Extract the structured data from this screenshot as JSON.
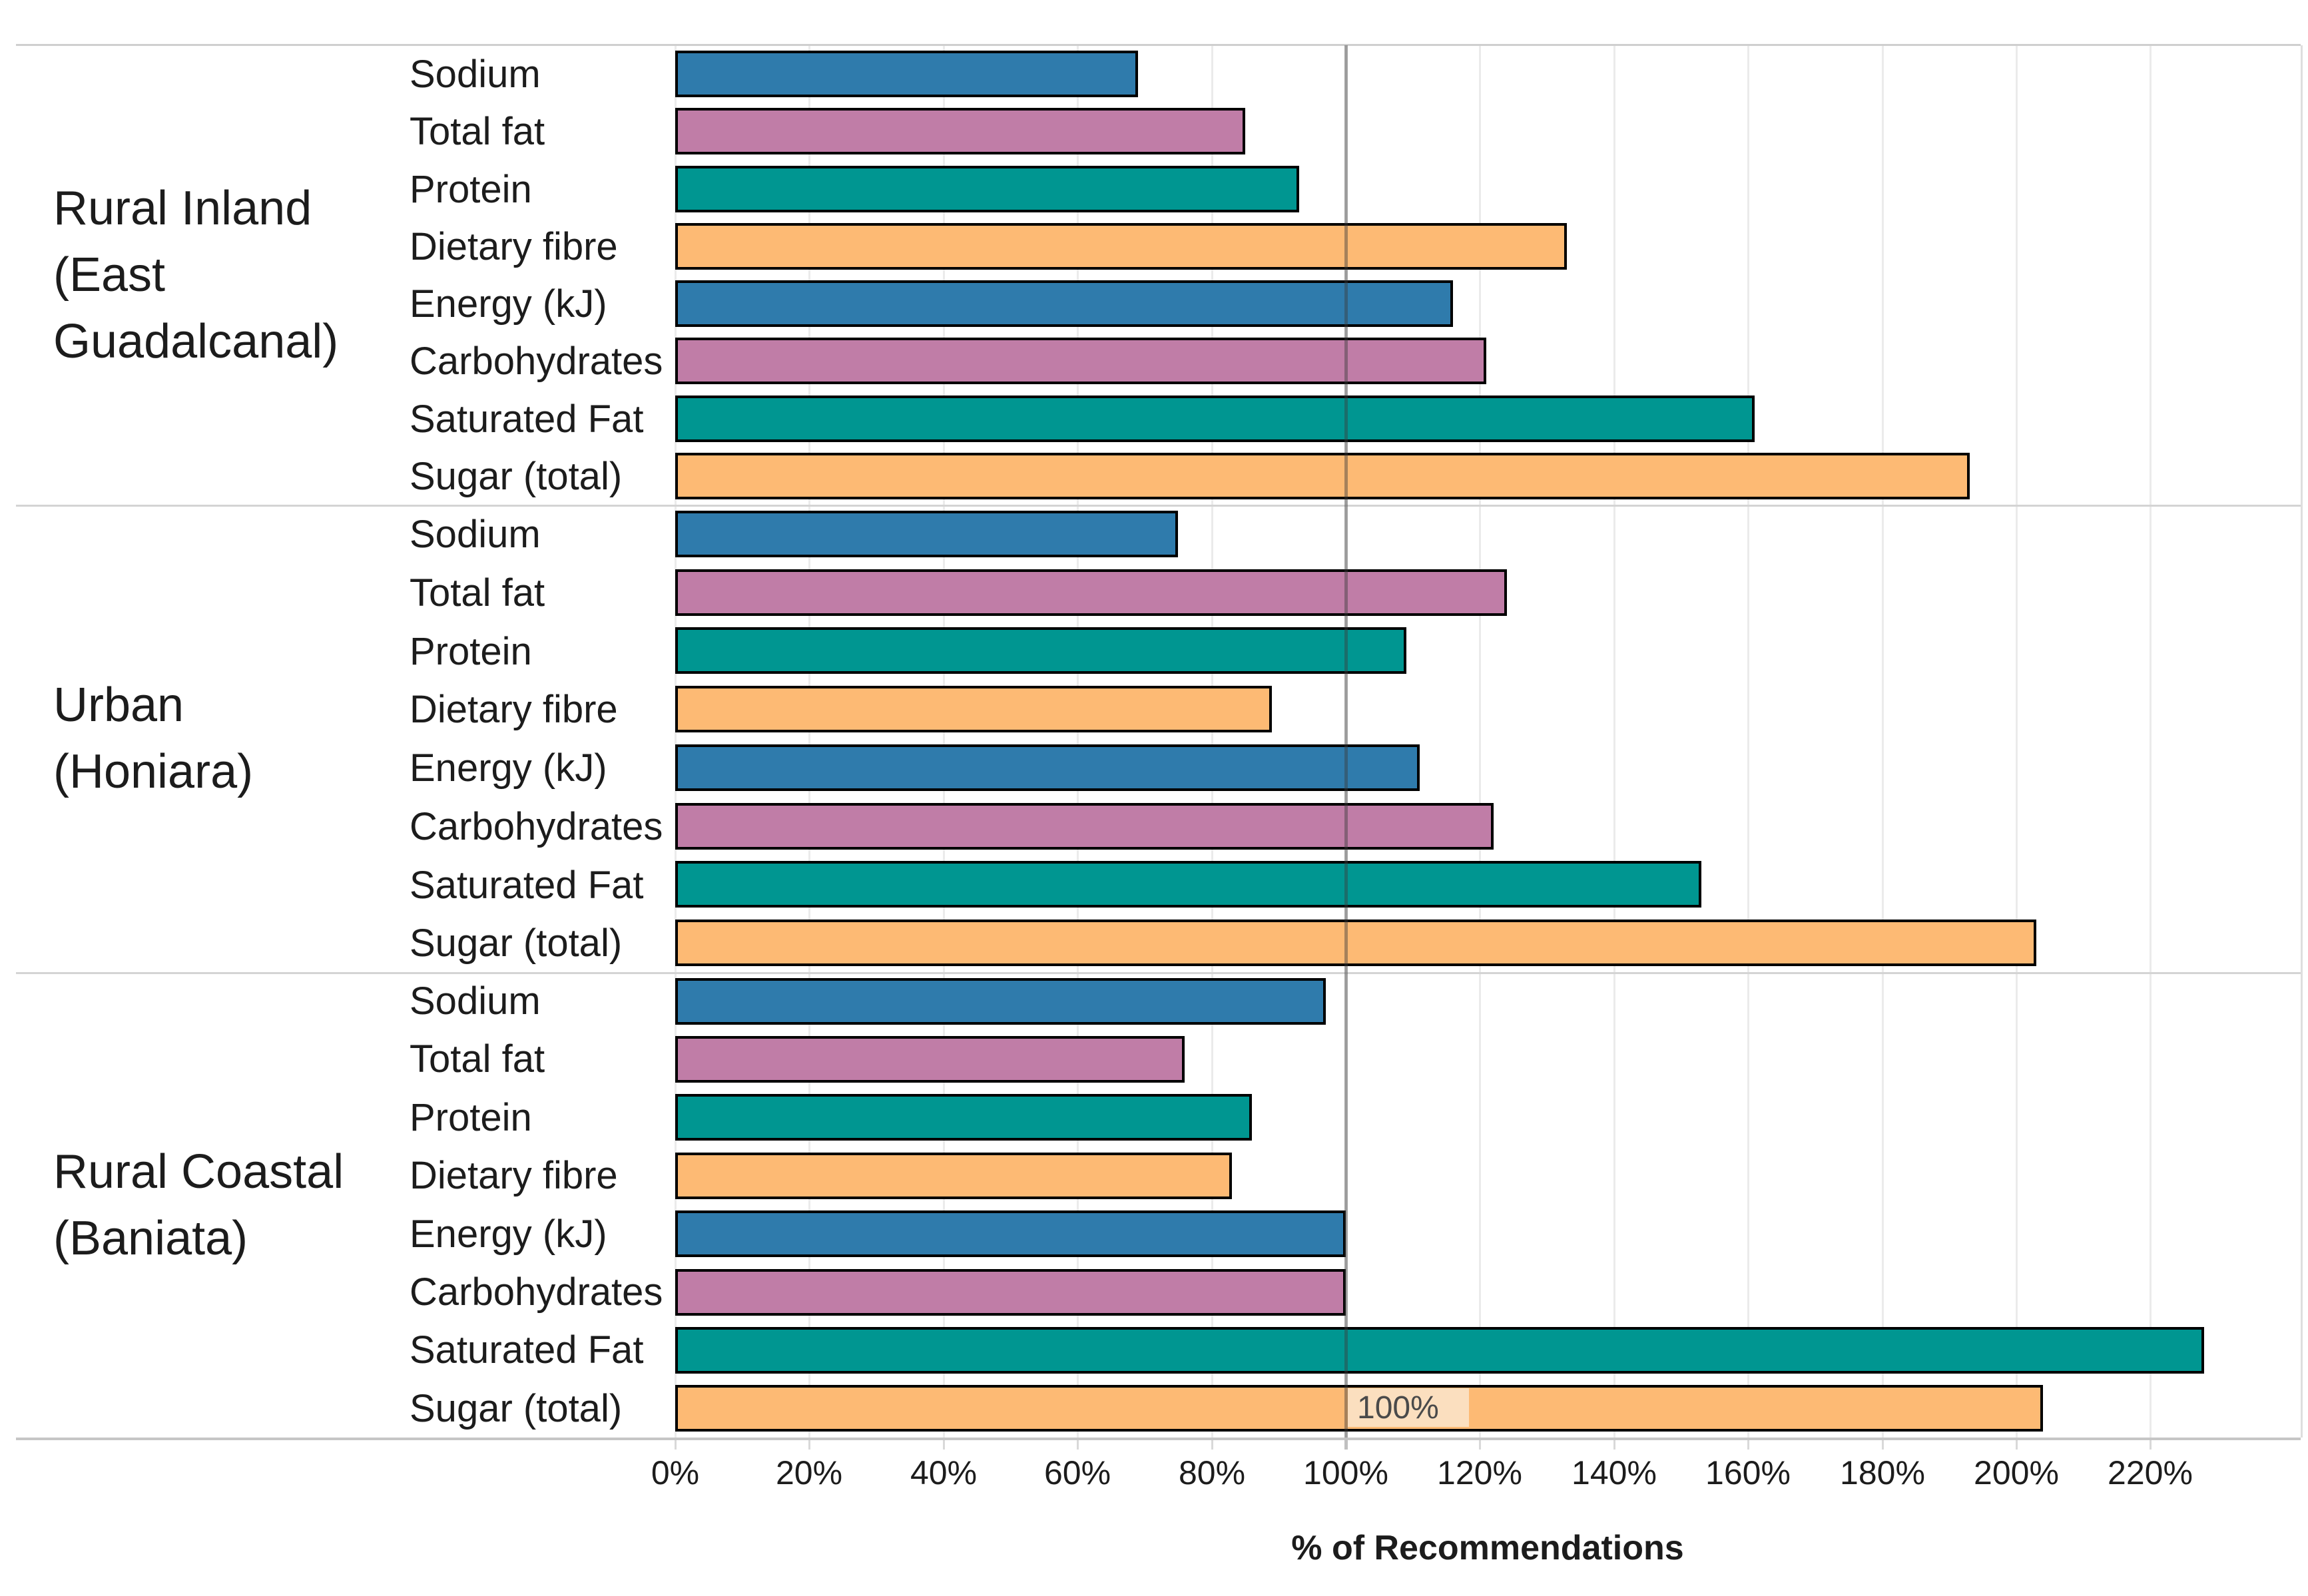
{
  "chart_data": {
    "type": "bar",
    "orientation": "horizontal",
    "xlabel": "% of Recommendations",
    "x_ticks": [
      "0%",
      "20%",
      "40%",
      "60%",
      "80%",
      "100%",
      "120%",
      "140%",
      "160%",
      "180%",
      "200%",
      "220%"
    ],
    "x_tick_values": [
      0,
      20,
      40,
      60,
      80,
      100,
      120,
      140,
      160,
      180,
      200,
      220
    ],
    "xlim": [
      0,
      242
    ],
    "grid": true,
    "legend_position": "none",
    "categories": [
      "Sodium",
      "Total fat",
      "Protein",
      "Dietary fibre",
      "Energy (kJ)",
      "Carbohydrates",
      "Saturated Fat",
      "Sugar (total)"
    ],
    "groups": [
      {
        "label": "Rural Inland (East Guadalcanal)",
        "label_lines": [
          "Rural Inland",
          "(East",
          "Guadalcanal)"
        ],
        "values": [
          69,
          85,
          93,
          133,
          116,
          121,
          161,
          193
        ]
      },
      {
        "label": "Urban (Honiara)",
        "label_lines": [
          "Urban",
          "(Honiara)"
        ],
        "values": [
          75,
          124,
          109,
          89,
          111,
          122,
          153,
          203
        ]
      },
      {
        "label": "Rural Coastal (Baniata)",
        "label_lines": [
          "Rural Coastal",
          "(Baniata)"
        ],
        "values": [
          97,
          76,
          86,
          83,
          100,
          100,
          228,
          204
        ]
      }
    ],
    "bar_colors": [
      "#2f7bac",
      "#c07da7",
      "#009691",
      "#fdba74"
    ],
    "bar_border_color": "#000000",
    "reference_line": {
      "value": 100,
      "label": "100%",
      "color": "#8c8c8c",
      "label_bg": "#fbdfbf"
    }
  }
}
